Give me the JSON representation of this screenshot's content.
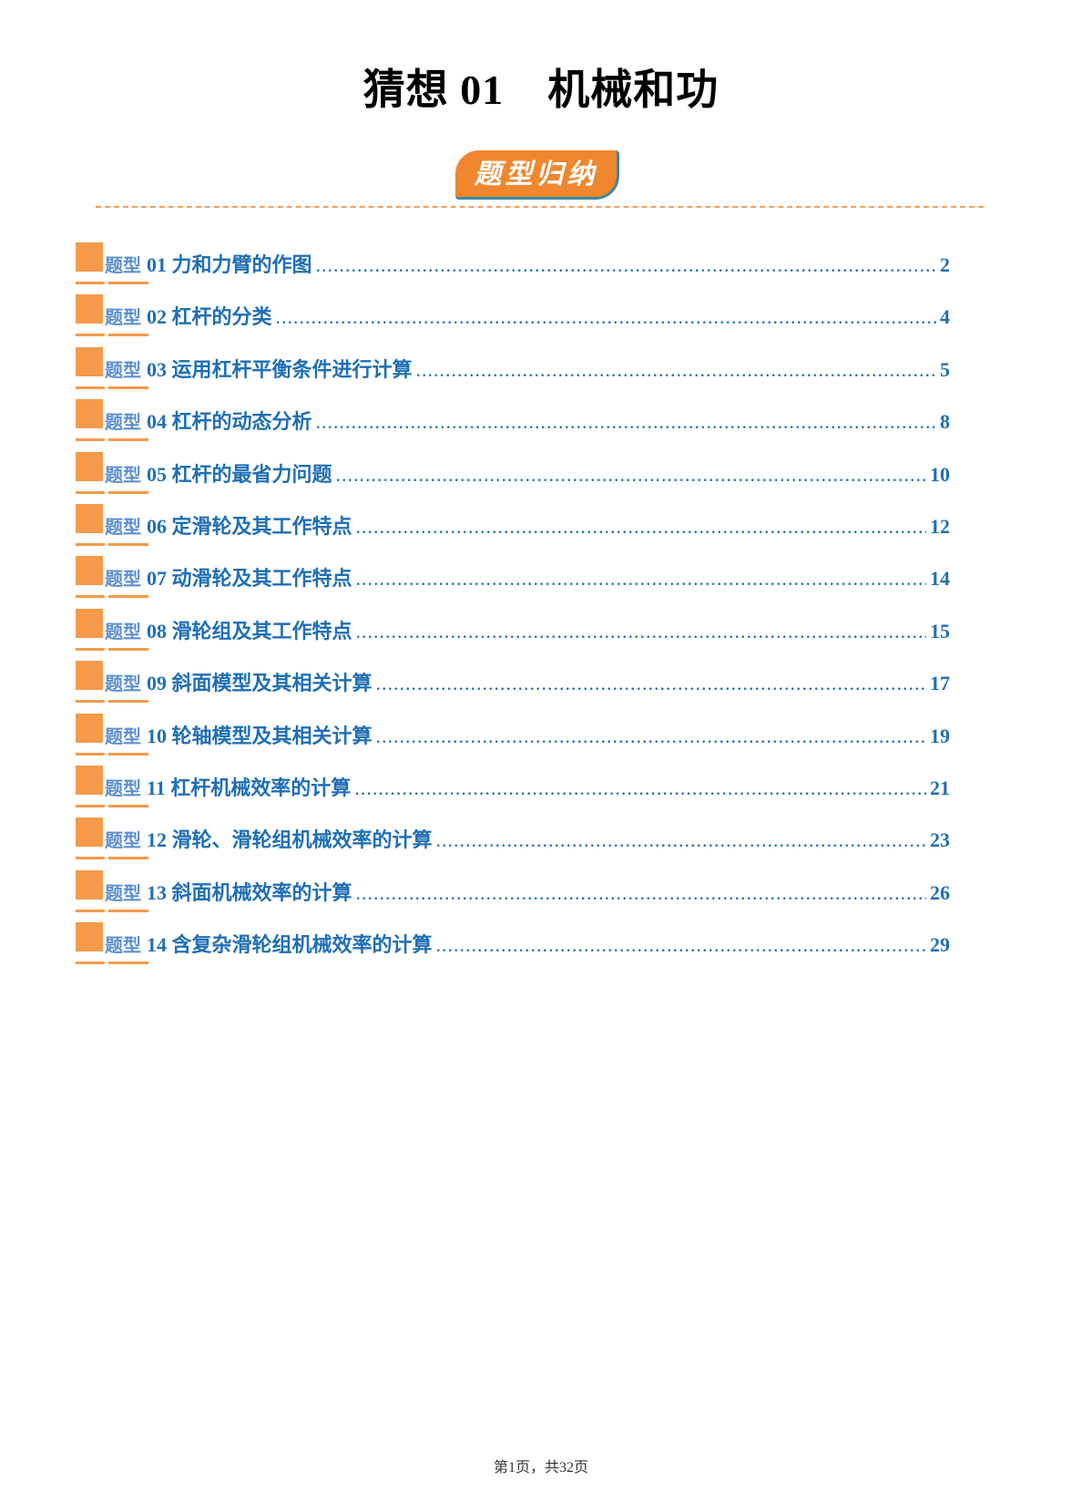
{
  "title": {
    "prefix": "猜想 01",
    "subject": "机械和功"
  },
  "badge": "题型归纳",
  "toc_label": "题型",
  "items": [
    {
      "num": "01",
      "text": "力和力臂的作图",
      "page": "2"
    },
    {
      "num": "02",
      "text": "杠杆的分类",
      "page": "4"
    },
    {
      "num": "03",
      "text": "运用杠杆平衡条件进行计算",
      "page": "5"
    },
    {
      "num": "04",
      "text": "杠杆的动态分析",
      "page": "8"
    },
    {
      "num": "05",
      "text": "杠杆的最省力问题",
      "page": "10"
    },
    {
      "num": "06",
      "text": "定滑轮及其工作特点",
      "page": "12"
    },
    {
      "num": "07",
      "text": "动滑轮及其工作特点",
      "page": "14"
    },
    {
      "num": "08",
      "text": "滑轮组及其工作特点",
      "page": "15"
    },
    {
      "num": "09",
      "text": "斜面模型及其相关计算",
      "page": "17"
    },
    {
      "num": "10",
      "text": "轮轴模型及其相关计算",
      "page": "19"
    },
    {
      "num": "11",
      "text": "杠杆机械效率的计算",
      "page": "21"
    },
    {
      "num": "12",
      "text": "滑轮、滑轮组机械效率的计算",
      "page": "23"
    },
    {
      "num": "13",
      "text": "斜面机械效率的计算",
      "page": "26"
    },
    {
      "num": "14",
      "text": "含复杂滑轮组机械效率的计算",
      "page": "29"
    }
  ],
  "footer": "第1页，共32页",
  "colors": {
    "accent": "#f59a4a",
    "link": "#1f6fb5",
    "label": "#5b8fd0"
  }
}
